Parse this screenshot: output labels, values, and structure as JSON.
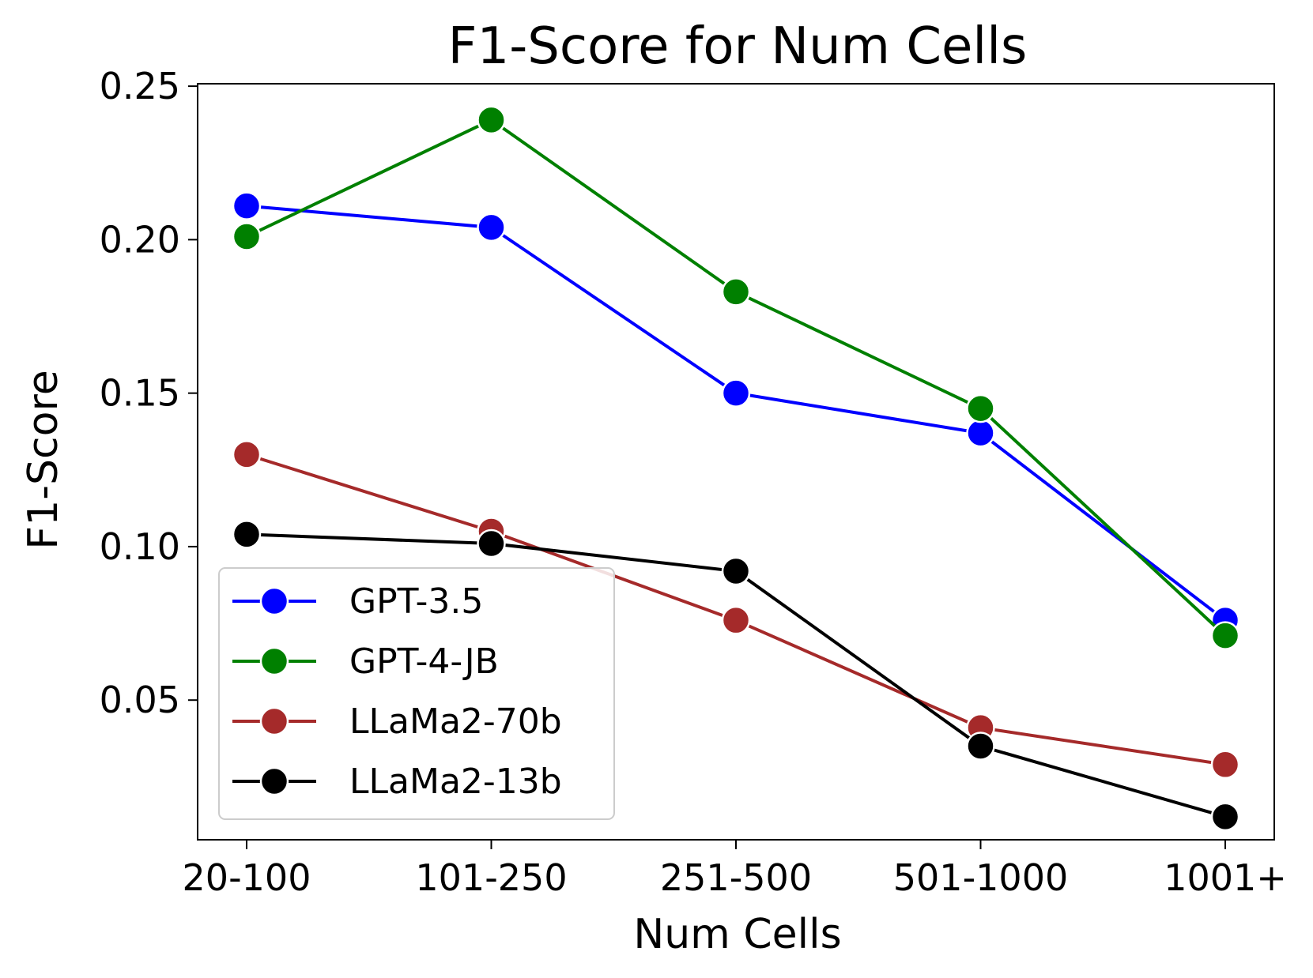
{
  "chart_data": {
    "type": "line",
    "title": "F1-Score for Num Cells",
    "xlabel": "Num Cells",
    "ylabel": "F1-Score",
    "categories": [
      "20-100",
      "101-250",
      "251-500",
      "501-1000",
      "1001+"
    ],
    "ylim": [
      0.0045,
      0.2508
    ],
    "yticks": [
      0.05,
      0.1,
      0.15,
      0.2,
      0.25
    ],
    "ytick_labels": [
      "0.05",
      "0.10",
      "0.15",
      "0.20",
      "0.25"
    ],
    "grid": false,
    "legend_position": "lower-left",
    "series": [
      {
        "name": "GPT-3.5",
        "color": "#0000ff",
        "values": [
          0.211,
          0.204,
          0.15,
          0.137,
          0.076
        ]
      },
      {
        "name": "GPT-4-JB",
        "color": "#008000",
        "values": [
          0.201,
          0.239,
          0.183,
          0.145,
          0.071
        ]
      },
      {
        "name": "LLaMa2-70b",
        "color": "#a52a2a",
        "values": [
          0.13,
          0.105,
          0.076,
          0.041,
          0.029
        ]
      },
      {
        "name": "LLaMa2-13b",
        "color": "#000000",
        "values": [
          0.104,
          0.101,
          0.092,
          0.035,
          0.012
        ]
      }
    ]
  }
}
